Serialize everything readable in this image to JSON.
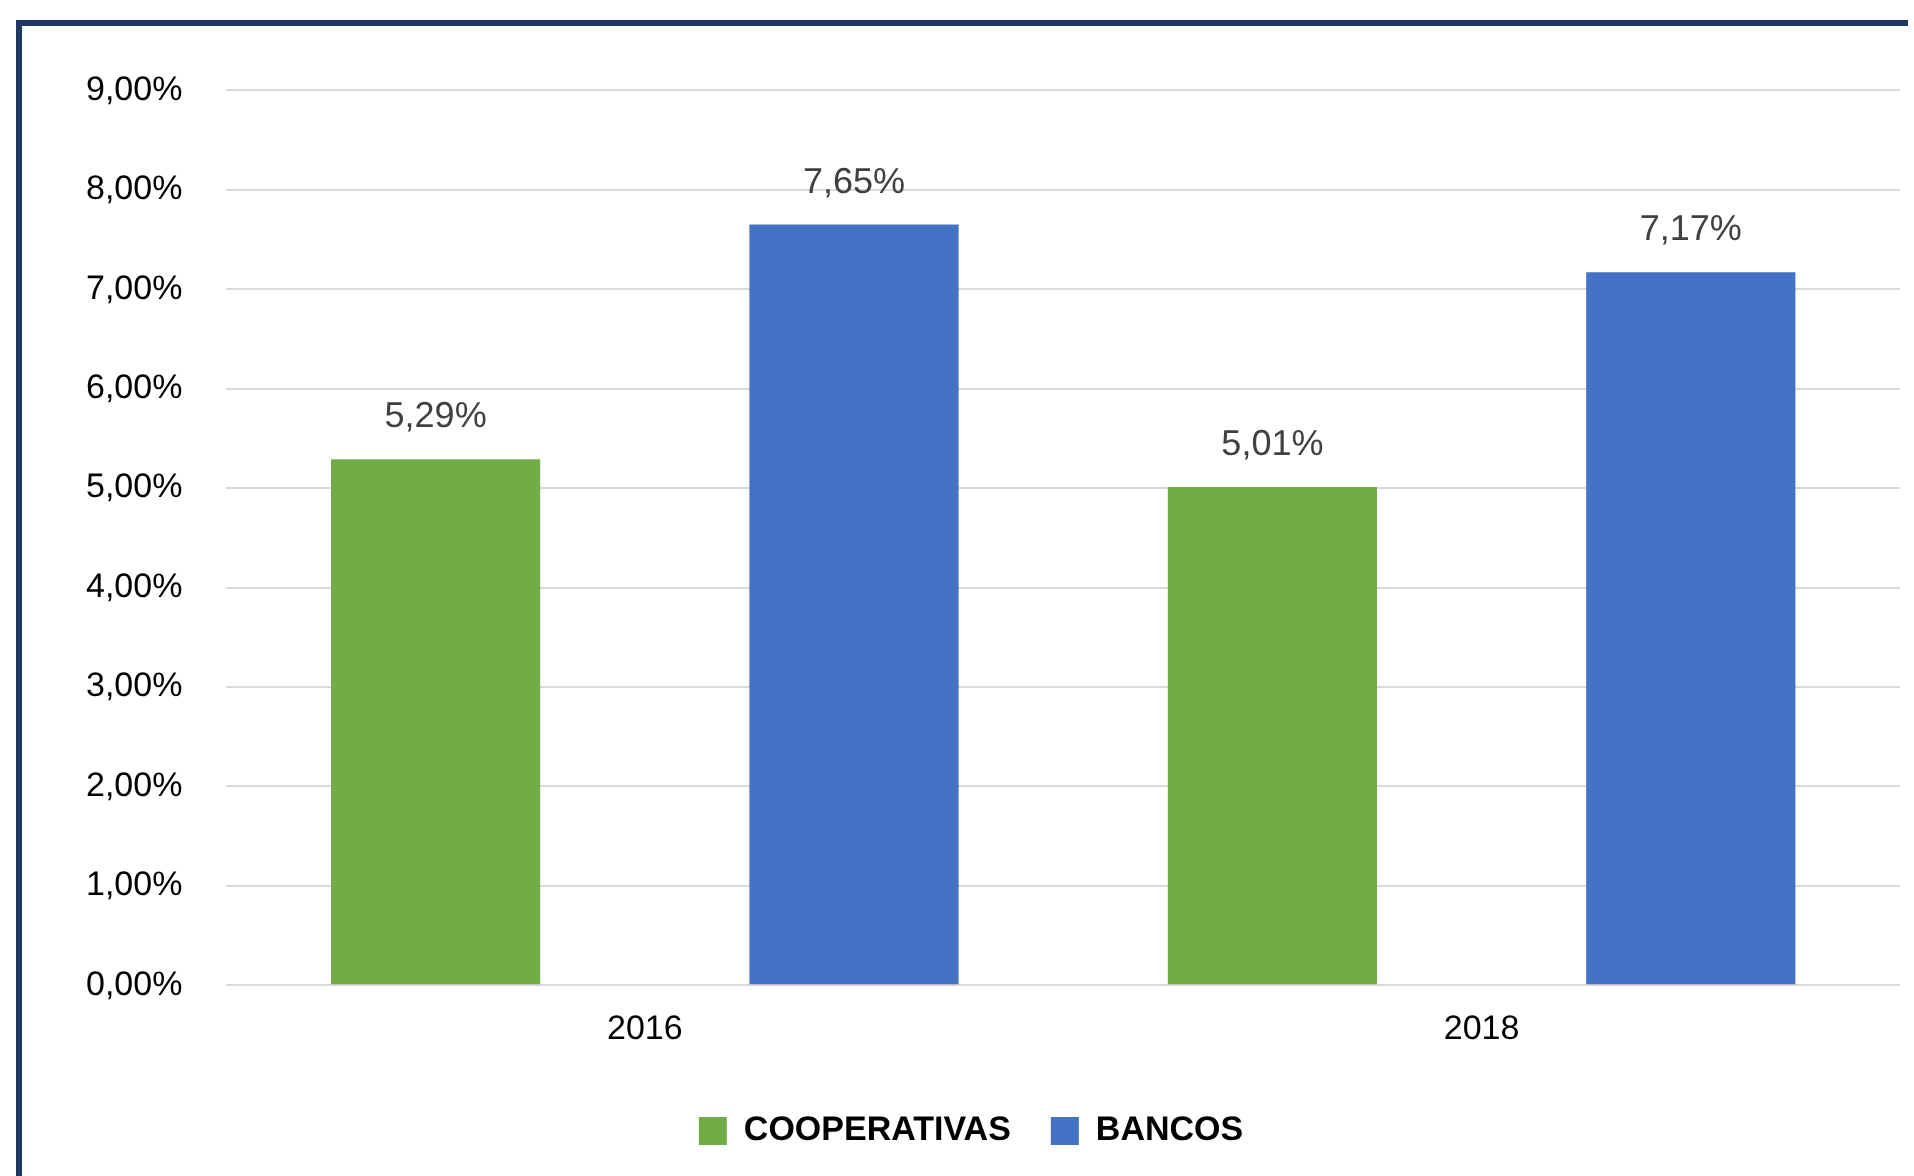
{
  "chart_data": {
    "type": "bar",
    "categories": [
      "2016",
      "2018"
    ],
    "series": [
      {
        "name": "COOPERATIVAS",
        "color": "#70ad47",
        "values": [
          5.29,
          5.01
        ],
        "value_labels": [
          "5,29%",
          "5,01%"
        ]
      },
      {
        "name": "BANCOS",
        "color": "#4472c4",
        "values": [
          7.65,
          7.17
        ],
        "value_labels": [
          "7,65%",
          "7,17%"
        ]
      }
    ],
    "ylim": [
      0,
      9
    ],
    "yticks": [
      {
        "value": 0,
        "label": "0,00%"
      },
      {
        "value": 1,
        "label": "1,00%"
      },
      {
        "value": 2,
        "label": "2,00%"
      },
      {
        "value": 3,
        "label": "3,00%"
      },
      {
        "value": 4,
        "label": "4,00%"
      },
      {
        "value": 5,
        "label": "5,00%"
      },
      {
        "value": 6,
        "label": "6,00%"
      },
      {
        "value": 7,
        "label": "7,00%"
      },
      {
        "value": 8,
        "label": "8,00%"
      },
      {
        "value": 9,
        "label": "9,00%"
      }
    ],
    "grid": "y",
    "legend": "bottom"
  }
}
